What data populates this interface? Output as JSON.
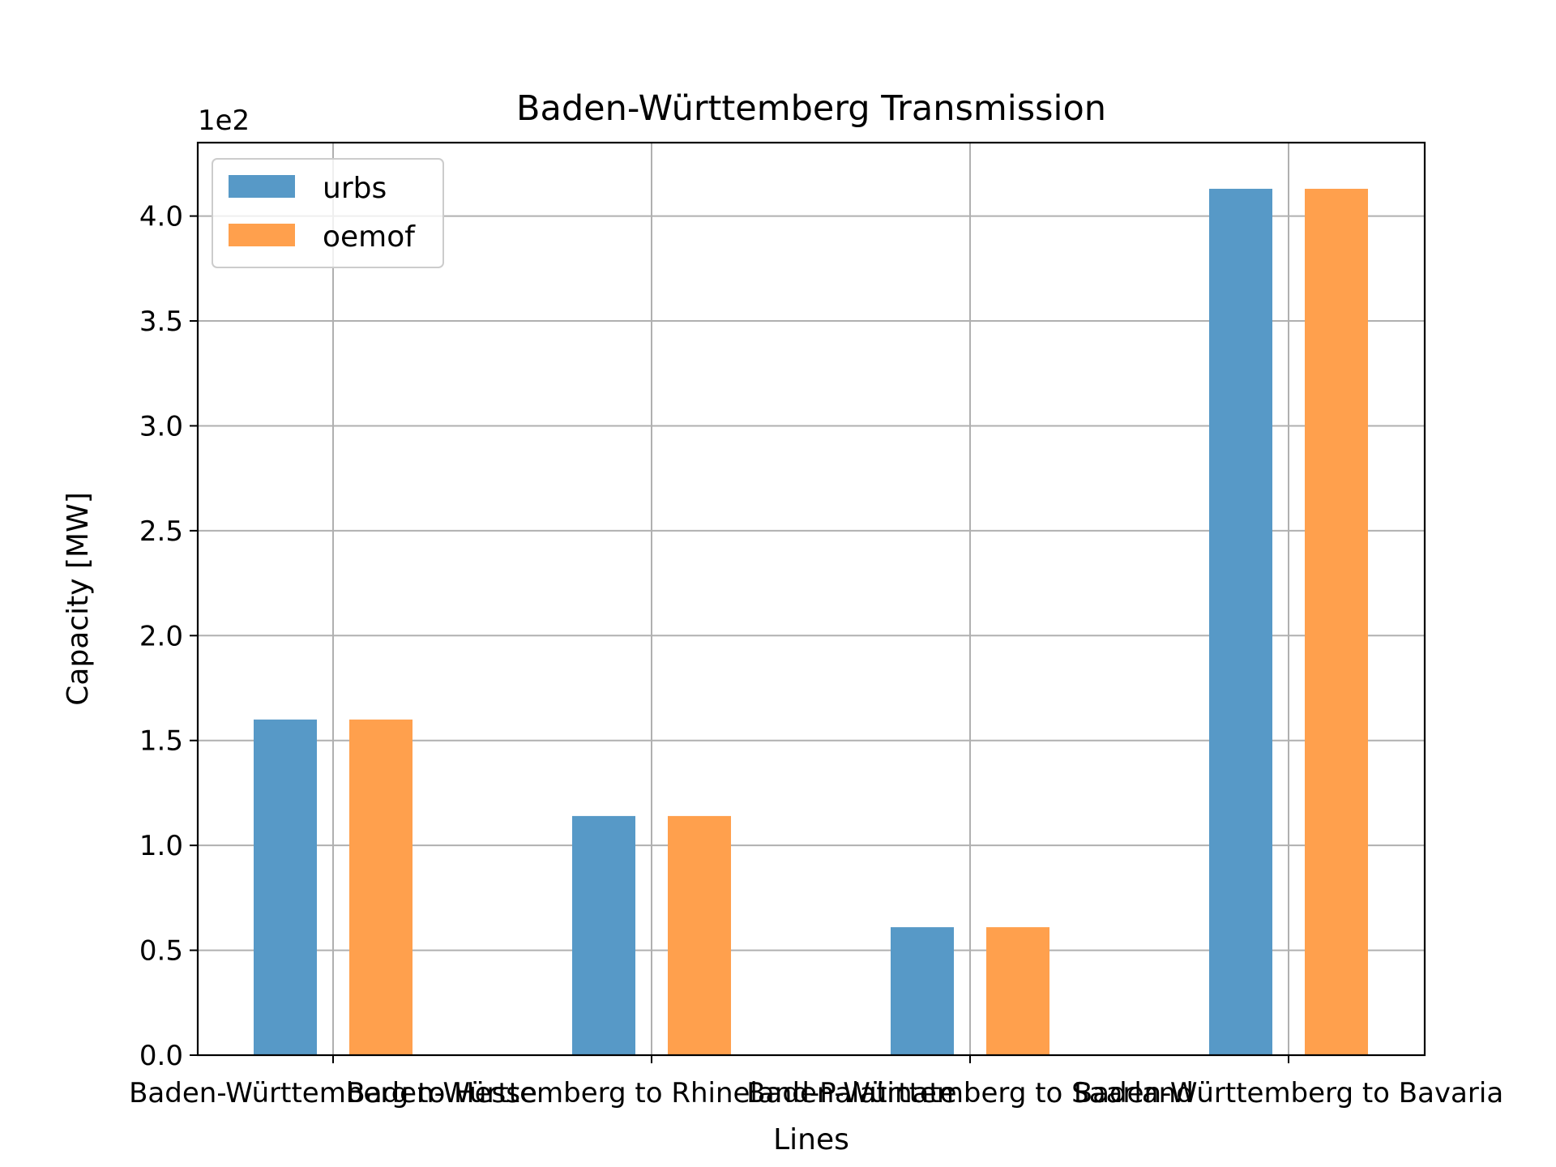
{
  "chart_data": {
    "type": "bar",
    "title": "Baden-Württemberg Transmission",
    "xlabel": "Lines",
    "ylabel": "Capacity [MW]",
    "y_offset_label": "1e2",
    "categories": [
      "Baden-Württemberg to Hesse",
      "Baden-Württemberg to Rhineland-Palatinate",
      "Baden-Württemberg to Saarland",
      "Baden-Württemberg to Bavaria"
    ],
    "series": [
      {
        "name": "urbs",
        "color": "#5799c7",
        "values": [
          160,
          114,
          61,
          413
        ]
      },
      {
        "name": "oemof",
        "color": "#ffa04d",
        "values": [
          160,
          114,
          61,
          413
        ]
      }
    ],
    "ylim": [
      0,
      435
    ],
    "yticks": [
      0,
      50,
      100,
      150,
      200,
      250,
      300,
      350,
      400
    ],
    "ytick_labels": [
      "0.0",
      "0.5",
      "1.0",
      "1.5",
      "2.0",
      "2.5",
      "3.0",
      "3.5",
      "4.0"
    ],
    "grid": true,
    "legend_position": "top-left"
  }
}
